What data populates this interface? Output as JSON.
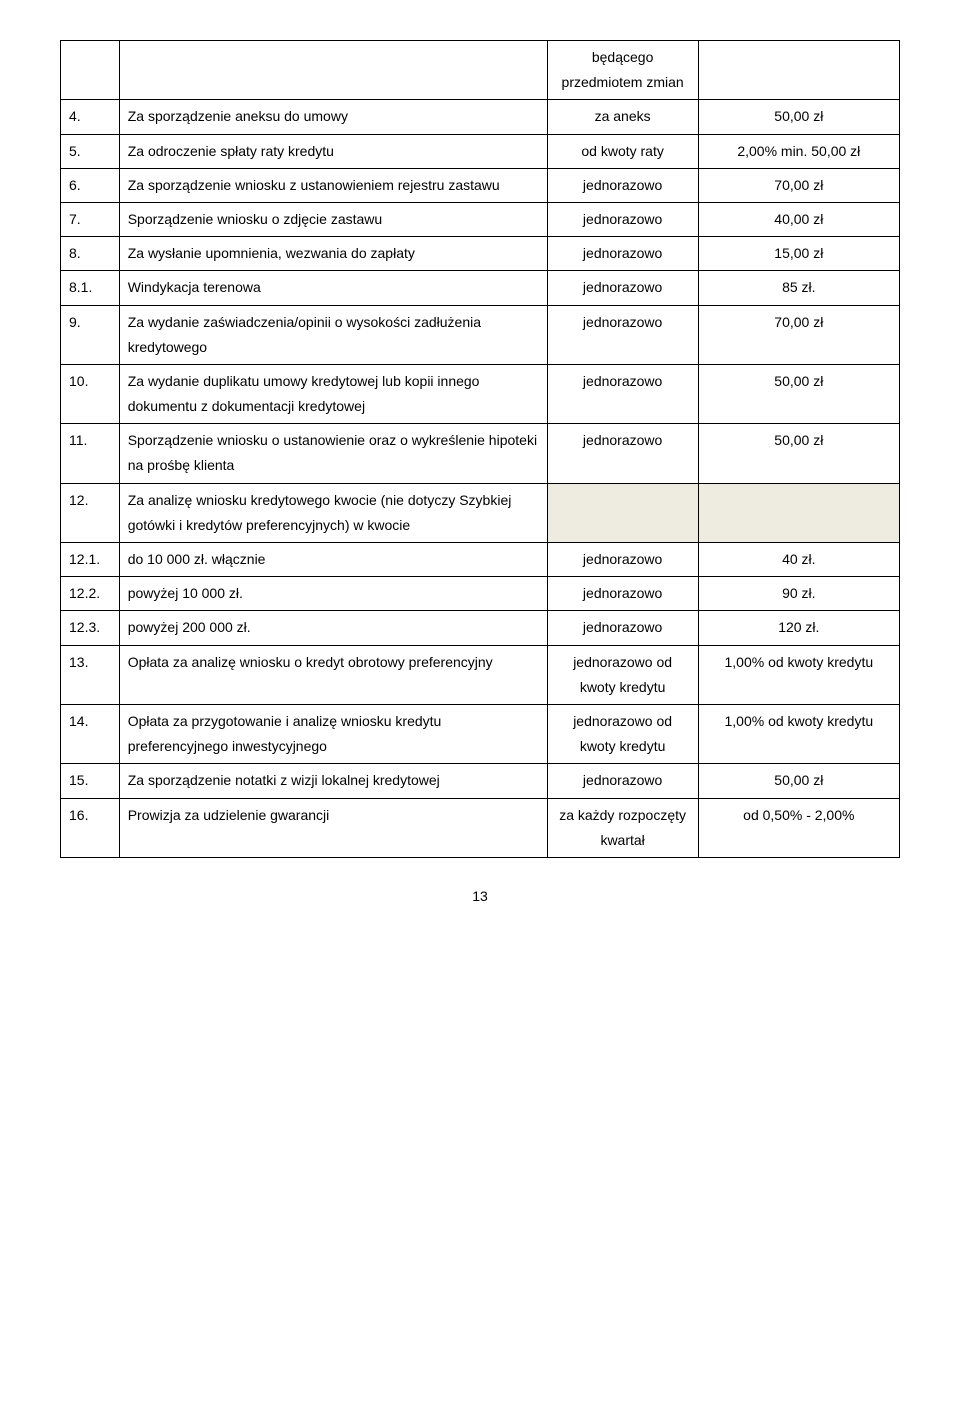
{
  "rows": [
    {
      "num": "",
      "desc": "",
      "freq": "będącego przedmiotem zmian",
      "val": ""
    },
    {
      "num": "4.",
      "desc": "Za sporządzenie aneksu do umowy",
      "freq": "za aneks",
      "val": "50,00 zł"
    },
    {
      "num": "5.",
      "desc": "Za odroczenie spłaty raty kredytu",
      "freq": "od kwoty raty",
      "val": "2,00% min. 50,00 zł"
    },
    {
      "num": "6.",
      "desc": "Za sporządzenie wniosku z ustanowieniem rejestru zastawu",
      "freq": "jednorazowo",
      "val": "70,00 zł"
    },
    {
      "num": "7.",
      "desc": "Sporządzenie wniosku o zdjęcie zastawu",
      "freq": "jednorazowo",
      "val": "40,00 zł"
    },
    {
      "num": "8.",
      "desc": "Za wysłanie upomnienia, wezwania do zapłaty",
      "freq": "jednorazowo",
      "val": "15,00 zł"
    },
    {
      "num": "8.1.",
      "desc": "Windykacja terenowa",
      "freq": "jednorazowo",
      "val": "85 zł."
    },
    {
      "num": "9.",
      "desc": "Za wydanie zaświadczenia/opinii o wysokości zadłużenia kredytowego",
      "freq": "jednorazowo",
      "val": "70,00 zł"
    },
    {
      "num": "10.",
      "desc": "Za wydanie duplikatu umowy kredytowej lub kopii innego dokumentu z dokumentacji kredytowej",
      "freq": "jednorazowo",
      "val": "50,00 zł"
    },
    {
      "num": "11.",
      "desc": "Sporządzenie wniosku o ustanowienie oraz o wykreślenie hipoteki  na prośbę klienta",
      "freq": "jednorazowo",
      "val": "50,00 zł"
    },
    {
      "num": "12.",
      "desc": "Za analizę wniosku kredytowego  kwocie (nie dotyczy Szybkiej gotówki i kredytów preferencyjnych) w kwocie",
      "freq": "",
      "val": "",
      "shaded": true
    },
    {
      "num": "12.1.",
      "desc": "do 10 000 zł. włącznie",
      "freq": "jednorazowo",
      "val": "40 zł."
    },
    {
      "num": "12.2.",
      "desc": "powyżej 10 000 zł.",
      "freq": "jednorazowo",
      "val": "90 zł."
    },
    {
      "num": "12.3.",
      "desc": "powyżej 200 000 zł.",
      "freq": "jednorazowo",
      "val": "120 zł."
    },
    {
      "num": "13.",
      "desc": "Opłata za analizę wniosku o kredyt obrotowy preferencyjny",
      "freq": "jednorazowo od kwoty kredytu",
      "val": "1,00% od kwoty kredytu"
    },
    {
      "num": "14.",
      "desc": "Opłata za przygotowanie i analizę wniosku kredytu preferencyjnego inwestycyjnego",
      "freq": "jednorazowo od kwoty kredytu",
      "val": "1,00% od kwoty kredytu"
    },
    {
      "num": "15.",
      "desc": "Za sporządzenie notatki z wizji lokalnej kredytowej",
      "freq": "jednorazowo",
      "val": "50,00 zł"
    },
    {
      "num": "16.",
      "desc": "Prowizja za udzielenie gwarancji",
      "freq": "za każdy rozpoczęty kwartał",
      "val": "od 0,50% - 2,00%"
    }
  ],
  "page_number": "13"
}
